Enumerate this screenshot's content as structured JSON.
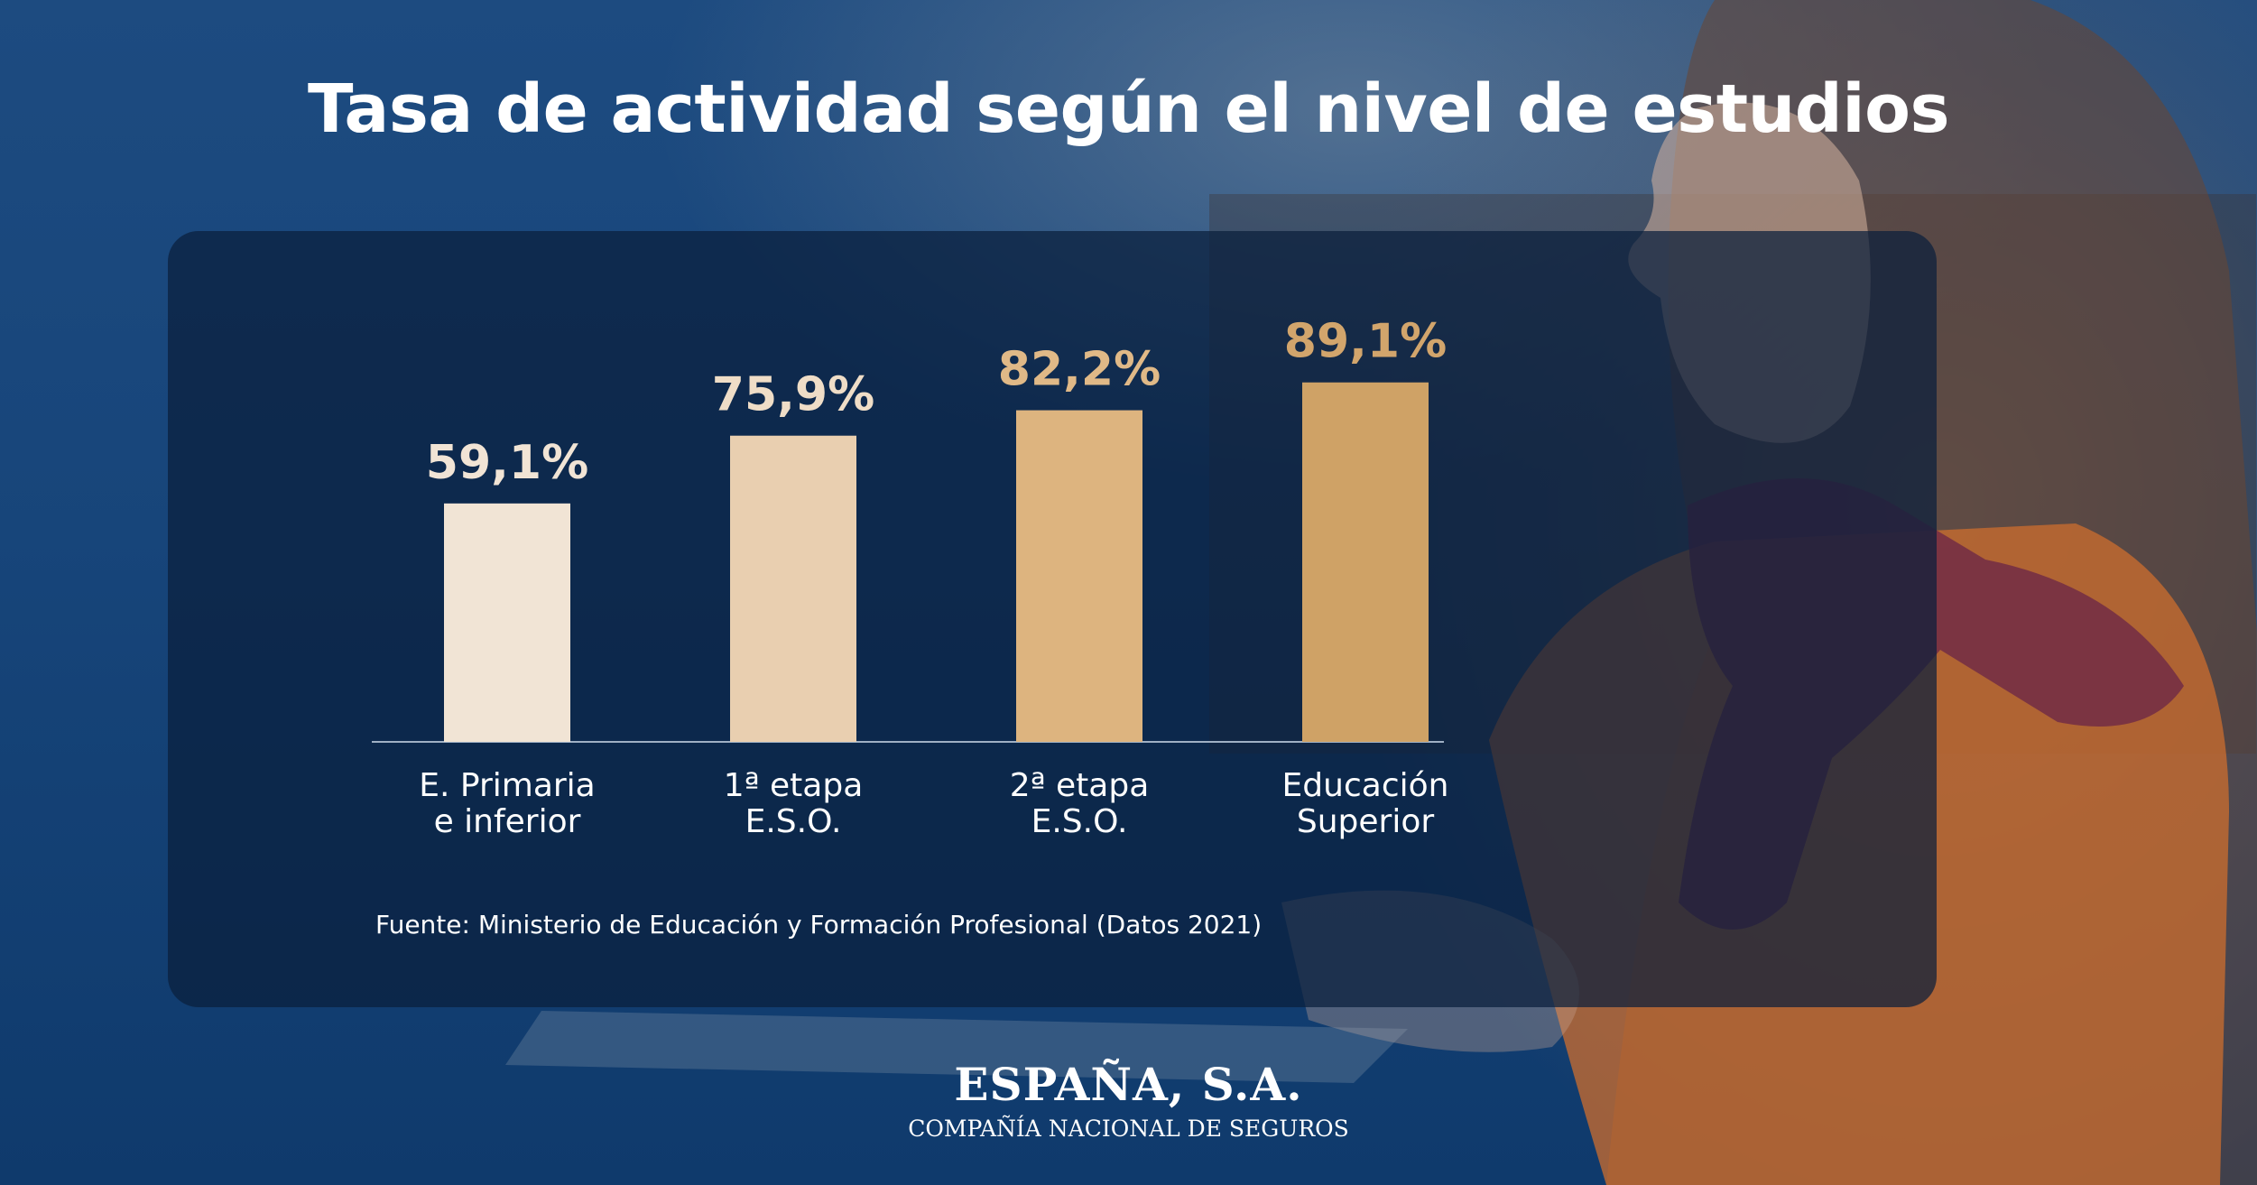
{
  "title": "Tasa de actividad según el nivel de estudios",
  "chart_data": {
    "type": "bar",
    "title": "Tasa de actividad según el nivel de estudios",
    "categories": [
      [
        "E. Primaria",
        "e inferior"
      ],
      [
        "1ª etapa",
        "E.S.O."
      ],
      [
        "2ª etapa",
        "E.S.O."
      ],
      [
        "Educación",
        "Superior"
      ]
    ],
    "values": [
      59.1,
      75.9,
      82.2,
      89.1
    ],
    "value_labels": [
      "59,1%",
      "75,9%",
      "82,2%",
      "89,1%"
    ],
    "unit": "%",
    "ylim": [
      0,
      100
    ],
    "grid": false,
    "colors": [
      "#f1e4d5",
      "#e9cfb0",
      "#ddb47f",
      "#cfa266"
    ],
    "label_colors": [
      "#f1e4d5",
      "#efddc7",
      "#e0b987",
      "#d2a56c"
    ]
  },
  "source": "Fuente: Ministerio de Educación y Formación Profesional (Datos 2021)",
  "brand": {
    "name": "ESPAÑA, S.A.",
    "tagline": "COMPAÑÍA NACIONAL DE SEGUROS"
  }
}
